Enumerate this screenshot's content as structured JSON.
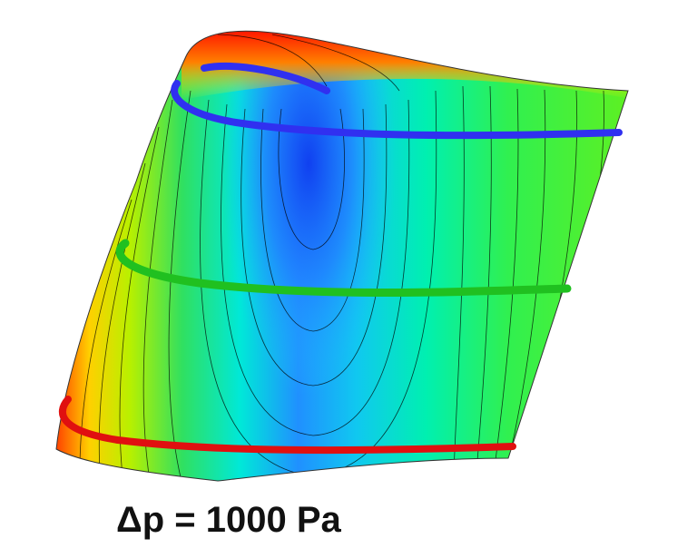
{
  "caption": "Δp = 1000 Pa"
}
